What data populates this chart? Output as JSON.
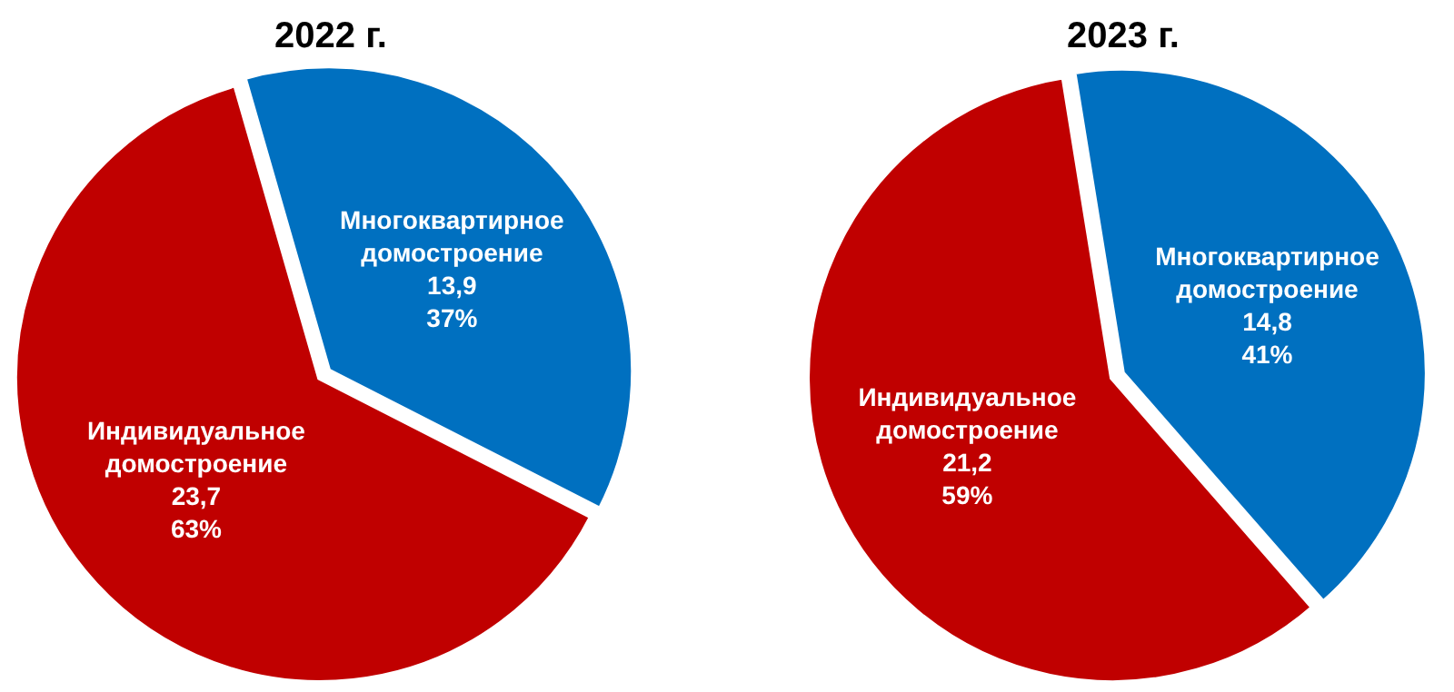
{
  "chart_data": [
    {
      "type": "pie",
      "title": "2022 г.",
      "categories": [
        "Многоквартирное домостроение",
        "Индивидуальное домостроение"
      ],
      "values": [
        13.9,
        23.7
      ],
      "colors": [
        "#0070c0",
        "#c00000"
      ],
      "value_labels": [
        "13,9\n37%",
        "23,7\n63%"
      ],
      "legend": false
    },
    {
      "type": "pie",
      "title": "2023 г.",
      "categories": [
        "Многоквартирное домостроение",
        "Индивидуальное домостроение"
      ],
      "values": [
        14.8,
        21.2
      ],
      "colors": [
        "#0070c0",
        "#c00000"
      ],
      "value_labels": [
        "14,8\n41%",
        "21,2\n59%"
      ],
      "legend": false
    }
  ]
}
